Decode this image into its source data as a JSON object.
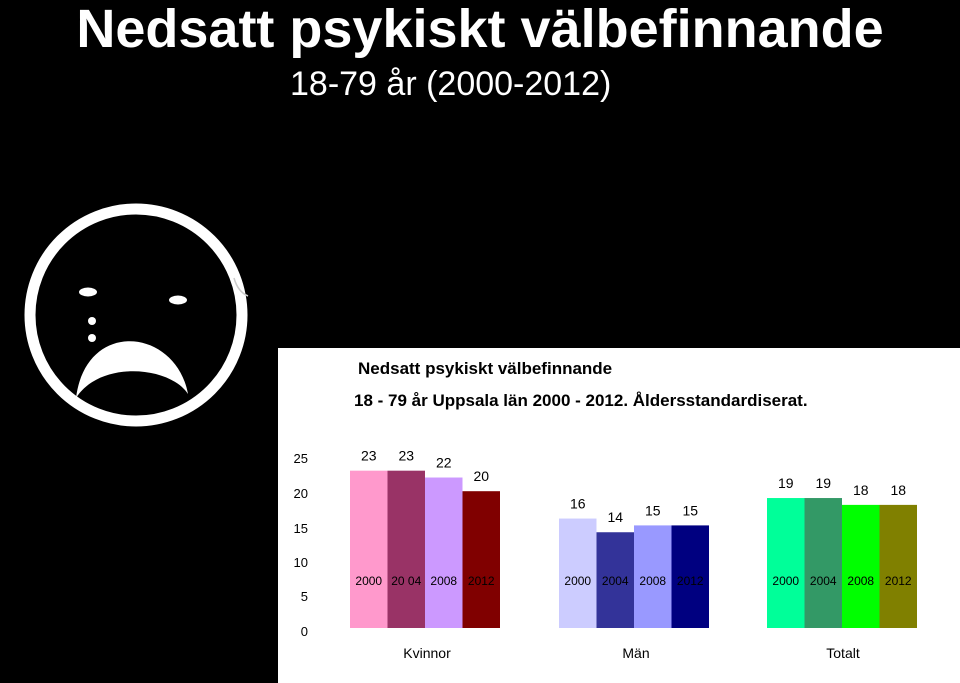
{
  "slide": {
    "title": "Nedsatt psykiskt välbefinnande",
    "subtitle": "18-79 år (2000-2012)"
  },
  "icons": {
    "smiley": "sad-face-icon"
  },
  "chart_data": {
    "type": "bar",
    "title": "Nedsatt psykiskt välbefinnande",
    "subtitle": "18 - 79 år Uppsala län 2000 - 2012. Åldersstandardiserat.",
    "y_ticks": [
      "25",
      "20",
      "15",
      "10",
      "5",
      "0"
    ],
    "ylim": [
      0,
      25
    ],
    "grid": false,
    "legend": "none",
    "groups": [
      {
        "name": "Kvinnor",
        "bars": [
          {
            "year": "2000",
            "value": 23,
            "label": "23",
            "color": "#FF99CC"
          },
          {
            "year": "20 04",
            "value": 23,
            "label": "23",
            "color": "#993366"
          },
          {
            "year": "2008",
            "value": 22,
            "label": "22",
            "color": "#CC99FF"
          },
          {
            "year": "2012",
            "value": 20,
            "label": "20",
            "color": "#800000"
          }
        ]
      },
      {
        "name": "Män",
        "bars": [
          {
            "year": "2000",
            "value": 16,
            "label": "16",
            "color": "#CCCCFF"
          },
          {
            "year": "2004",
            "value": 14,
            "label": "14",
            "color": "#333399"
          },
          {
            "year": "2008",
            "value": 15,
            "label": "15",
            "color": "#9999FF"
          },
          {
            "year": "2012",
            "value": 15,
            "label": "15",
            "color": "#000080"
          }
        ]
      },
      {
        "name": "Totalt",
        "bars": [
          {
            "year": "2000",
            "value": 19,
            "label": "19",
            "color": "#00FF99"
          },
          {
            "year": "2004",
            "value": 19,
            "label": "19",
            "color": "#339966"
          },
          {
            "year": "2008",
            "value": 18,
            "label": "18",
            "color": "#00FF00"
          },
          {
            "year": "2012",
            "value": 18,
            "label": "18",
            "color": "#808000"
          }
        ]
      }
    ]
  }
}
